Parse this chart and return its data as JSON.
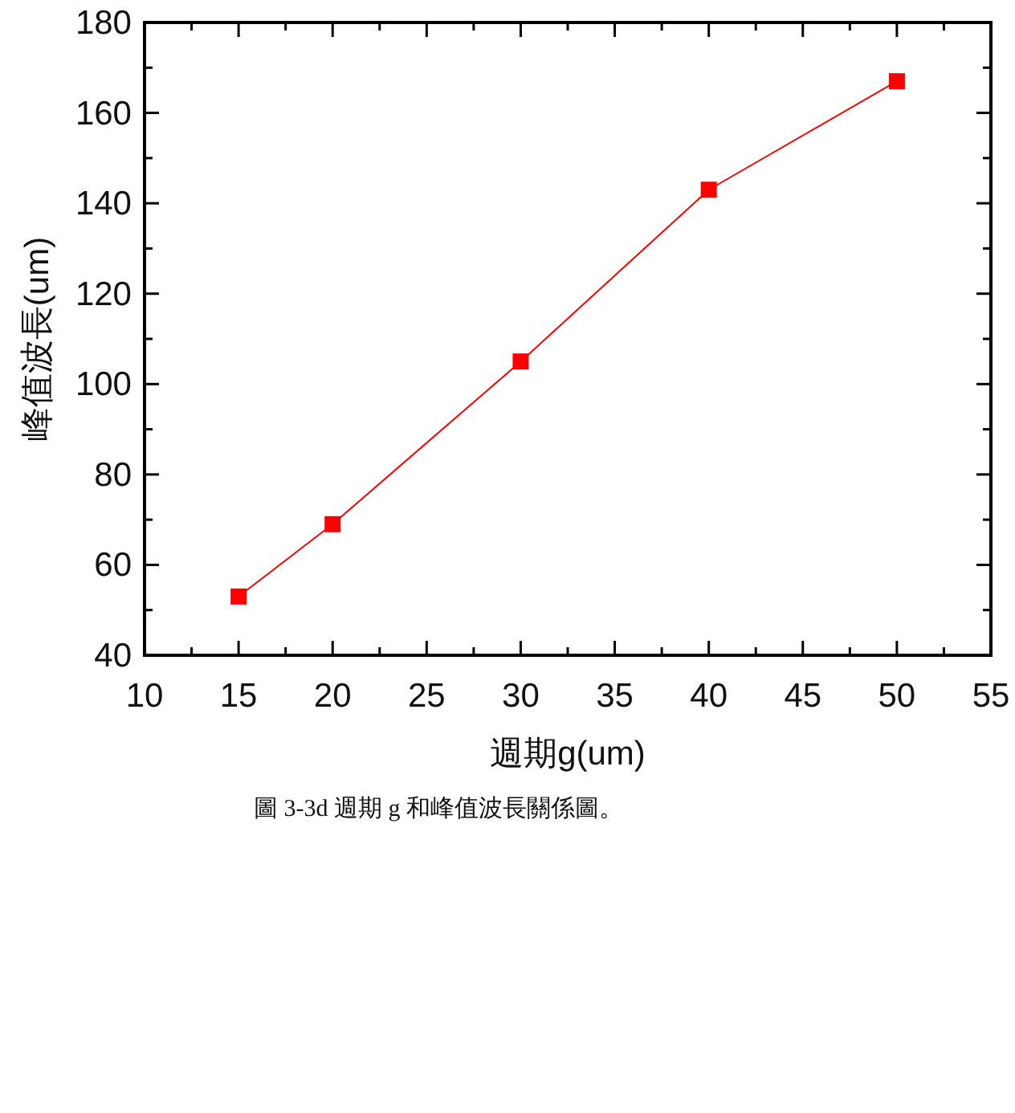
{
  "chart_data": {
    "type": "line",
    "xlabel": "週期g(um)",
    "ylabel": "峰值波長(um)",
    "x": [
      15,
      20,
      30,
      40,
      50
    ],
    "series": [
      {
        "color": "#ff0000",
        "values": [
          53,
          69,
          105,
          143,
          167
        ]
      }
    ],
    "marker": "square",
    "line_style": "solid",
    "grid": false,
    "xlim": [
      10,
      55
    ],
    "ylim": [
      40,
      180
    ],
    "xticks": [
      10,
      {
        "value": 12.5,
        "label": null
      },
      15,
      {
        "value": 17.5,
        "label": null
      },
      20,
      {
        "value": 22.5,
        "label": null
      },
      25,
      {
        "value": 27.5,
        "label": null
      },
      30,
      {
        "value": 32.5,
        "label": null
      },
      35,
      {
        "value": 37.5,
        "label": null
      },
      40,
      {
        "value": 42.5,
        "label": null
      },
      45,
      {
        "value": 47.5,
        "label": null
      },
      50,
      {
        "value": 52.5,
        "label": null
      },
      55
    ],
    "yticks": [
      40,
      {
        "value": 50,
        "label": null
      },
      60,
      {
        "value": 70,
        "label": null
      },
      80,
      {
        "value": 90,
        "label": null
      },
      100,
      {
        "value": 110,
        "label": null
      },
      120,
      {
        "value": 130,
        "label": null
      },
      140,
      {
        "value": 150,
        "label": null
      },
      160,
      {
        "value": 170,
        "label": null
      },
      180
    ],
    "annotations": [
      "圖 3-3d 週期 g 和峰值波長關係圖。"
    ]
  }
}
